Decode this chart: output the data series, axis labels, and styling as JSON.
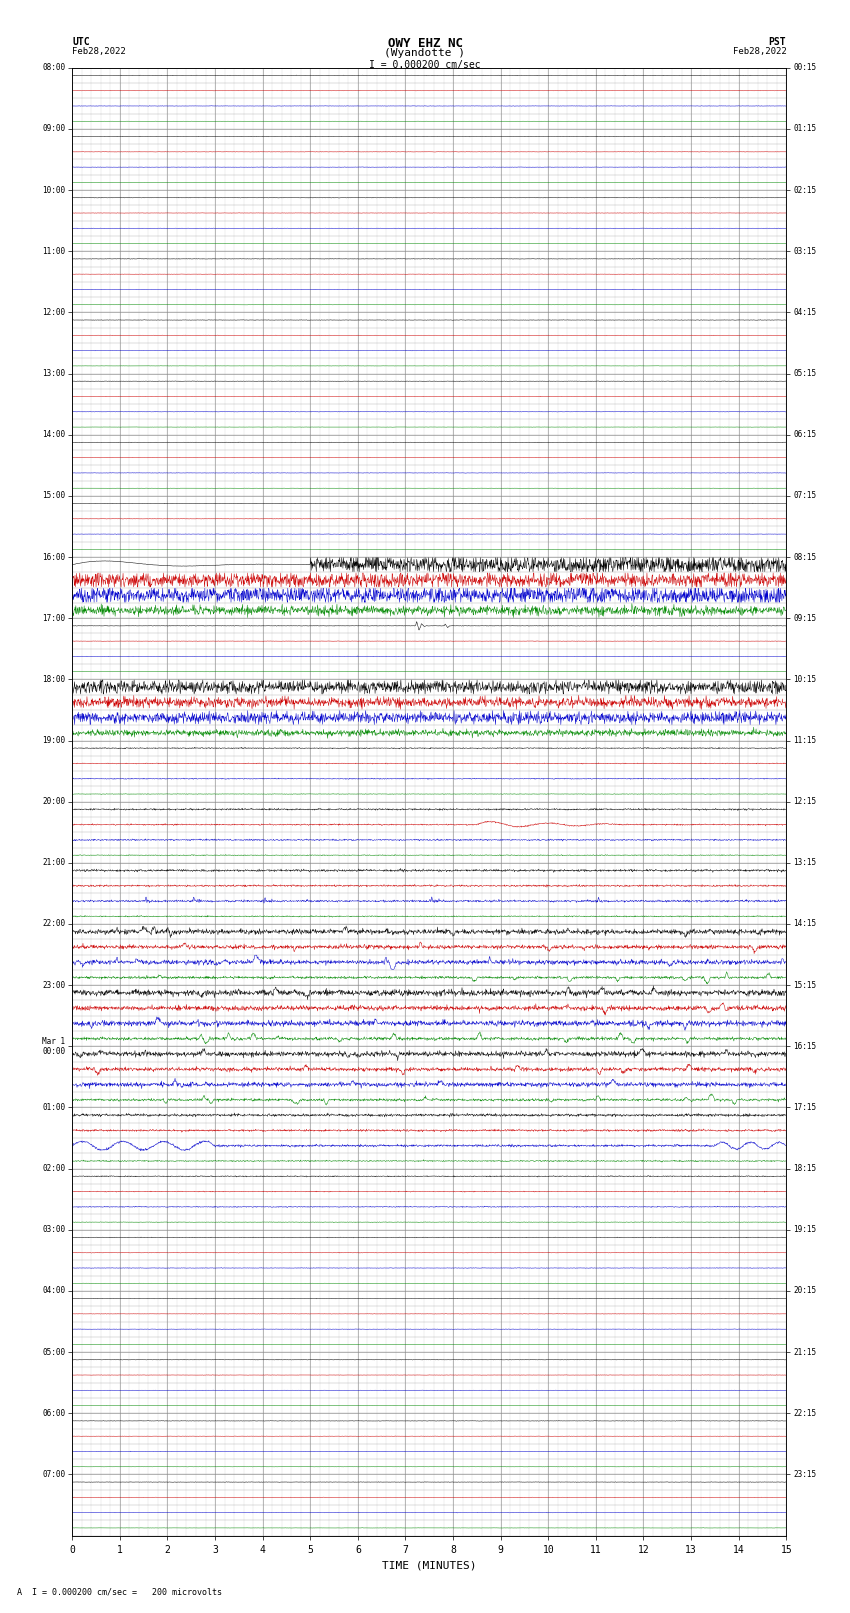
{
  "title_line1": "OWY EHZ NC",
  "title_line2": "(Wyandotte )",
  "scale_label": "I = 0.000200 cm/sec",
  "bottom_label": "A  I = 0.000200 cm/sec =   200 microvolts",
  "xlabel": "TIME (MINUTES)",
  "utc_times": [
    "08:00",
    "09:00",
    "10:00",
    "11:00",
    "12:00",
    "13:00",
    "14:00",
    "15:00",
    "16:00",
    "17:00",
    "18:00",
    "19:00",
    "20:00",
    "21:00",
    "22:00",
    "23:00",
    "Mar 1\n00:00",
    "01:00",
    "02:00",
    "03:00",
    "04:00",
    "05:00",
    "06:00",
    "07:00"
  ],
  "pst_times": [
    "00:15",
    "01:15",
    "02:15",
    "03:15",
    "04:15",
    "05:15",
    "06:15",
    "07:15",
    "08:15",
    "09:15",
    "10:15",
    "11:15",
    "12:15",
    "13:15",
    "14:15",
    "15:15",
    "16:15",
    "17:15",
    "18:15",
    "19:15",
    "20:15",
    "21:15",
    "22:15",
    "23:15"
  ],
  "n_hours": 24,
  "n_minutes": 15,
  "bg_color": "#ffffff",
  "colors": [
    "#000000",
    "#cc0000",
    "#0000cc",
    "#008800"
  ],
  "grid_color": "#888888",
  "figsize": [
    8.5,
    16.13
  ],
  "dpi": 100
}
